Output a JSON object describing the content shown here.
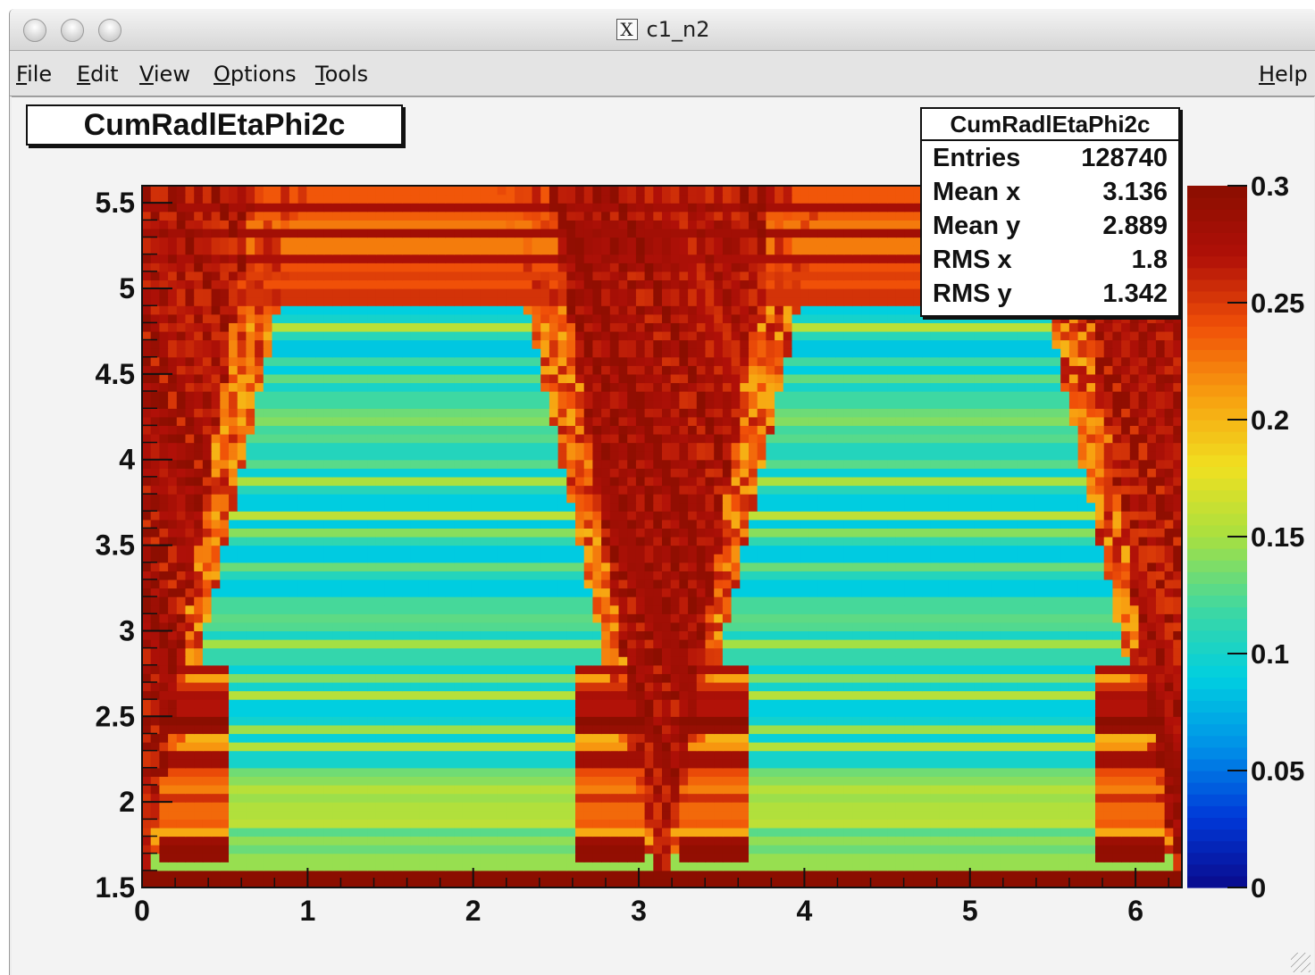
{
  "window": {
    "title": "c1_n2",
    "x_icon_glyph": "X"
  },
  "menu": {
    "file": "File",
    "edit": "Edit",
    "view": "View",
    "options": "Options",
    "tools": "Tools",
    "help": "Help"
  },
  "stats": {
    "title": "CumRadlEtaPhi2c",
    "rows": [
      {
        "label": "Entries",
        "value": "128740"
      },
      {
        "label": "Mean x",
        "value": "3.136"
      },
      {
        "label": "Mean y",
        "value": "2.889"
      },
      {
        "label": "RMS x",
        "value": "1.8"
      },
      {
        "label": "RMS y",
        "value": "1.342"
      }
    ]
  },
  "chart_data": {
    "type": "heatmap",
    "title": "CumRadlEtaPhi2c",
    "xlim": [
      0,
      6.28
    ],
    "ylim": [
      1.5,
      5.6
    ],
    "zlim": [
      0,
      0.3
    ],
    "x_tick_labels": [
      "0",
      "1",
      "2",
      "3",
      "4",
      "5",
      "6"
    ],
    "x_ticks": [
      0,
      1,
      2,
      3,
      4,
      5,
      6
    ],
    "y_tick_labels": [
      "1.5",
      "2",
      "2.5",
      "3",
      "3.5",
      "4",
      "4.5",
      "5",
      "5.5"
    ],
    "y_ticks": [
      1.5,
      2,
      2.5,
      3,
      3.5,
      4,
      4.5,
      5,
      5.5
    ],
    "z_tick_labels": [
      "0",
      "0.05",
      "0.1",
      "0.15",
      "0.2",
      "0.25",
      "0.3"
    ],
    "z_ticks": [
      0,
      0.05,
      0.1,
      0.15,
      0.2,
      0.25,
      0.3
    ],
    "palette": [
      "#0a0a8c",
      "#0038d8",
      "#0090e8",
      "#00cfe0",
      "#40d8a0",
      "#a8e040",
      "#f0e020",
      "#f8a010",
      "#f05008",
      "#b01008",
      "#8b0e00"
    ],
    "colorbar": "right",
    "grid": false
  }
}
